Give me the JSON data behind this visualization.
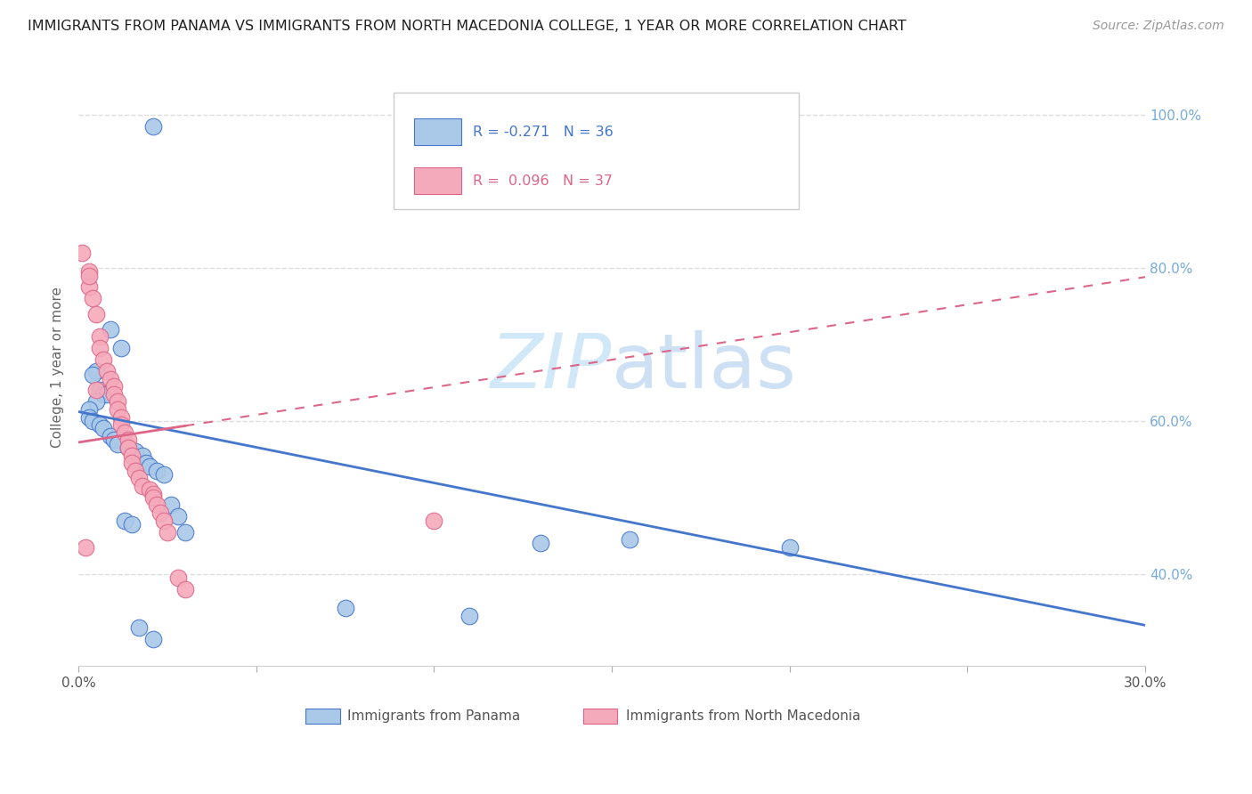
{
  "title": "IMMIGRANTS FROM PANAMA VS IMMIGRANTS FROM NORTH MACEDONIA COLLEGE, 1 YEAR OR MORE CORRELATION CHART",
  "source": "Source: ZipAtlas.com",
  "ylabel": "College, 1 year or more",
  "legend_blue_label": "Immigrants from Panama",
  "legend_pink_label": "Immigrants from North Macedonia",
  "legend_blue_r": "R = -0.271",
  "legend_blue_n": "N = 36",
  "legend_pink_r": "R = 0.096",
  "legend_pink_n": "N = 37",
  "xlim": [
    0.0,
    0.3
  ],
  "ylim": [
    0.28,
    1.06
  ],
  "yticks": [
    0.4,
    0.6,
    0.8,
    1.0
  ],
  "ytick_labels": [
    "40.0%",
    "60.0%",
    "80.0%",
    "100.0%"
  ],
  "xticks": [
    0.0,
    0.05,
    0.1,
    0.15,
    0.2,
    0.25,
    0.3
  ],
  "xtick_labels": [
    "0.0%",
    "",
    "",
    "",
    "",
    "",
    "30.0%"
  ],
  "blue_x": [
    0.021,
    0.009,
    0.012,
    0.005,
    0.004,
    0.006,
    0.007,
    0.008,
    0.005,
    0.003,
    0.003,
    0.004,
    0.006,
    0.007,
    0.009,
    0.01,
    0.011,
    0.014,
    0.016,
    0.018,
    0.019,
    0.02,
    0.022,
    0.024,
    0.026,
    0.028,
    0.013,
    0.015,
    0.03,
    0.13,
    0.2,
    0.155,
    0.075,
    0.11,
    0.017,
    0.021
  ],
  "blue_y": [
    0.985,
    0.72,
    0.695,
    0.665,
    0.66,
    0.64,
    0.635,
    0.635,
    0.625,
    0.615,
    0.605,
    0.6,
    0.595,
    0.59,
    0.58,
    0.575,
    0.57,
    0.565,
    0.56,
    0.555,
    0.545,
    0.54,
    0.535,
    0.53,
    0.49,
    0.475,
    0.47,
    0.465,
    0.455,
    0.44,
    0.435,
    0.445,
    0.355,
    0.345,
    0.33,
    0.315
  ],
  "pink_x": [
    0.001,
    0.003,
    0.003,
    0.004,
    0.005,
    0.006,
    0.006,
    0.007,
    0.008,
    0.009,
    0.01,
    0.01,
    0.011,
    0.011,
    0.012,
    0.012,
    0.013,
    0.014,
    0.014,
    0.015,
    0.015,
    0.016,
    0.017,
    0.018,
    0.02,
    0.021,
    0.021,
    0.022,
    0.023,
    0.024,
    0.025,
    0.028,
    0.03,
    0.003,
    0.005,
    0.1,
    0.002
  ],
  "pink_y": [
    0.82,
    0.795,
    0.775,
    0.76,
    0.74,
    0.71,
    0.695,
    0.68,
    0.665,
    0.655,
    0.645,
    0.635,
    0.625,
    0.615,
    0.605,
    0.595,
    0.585,
    0.575,
    0.565,
    0.555,
    0.545,
    0.535,
    0.525,
    0.515,
    0.51,
    0.505,
    0.5,
    0.49,
    0.48,
    0.47,
    0.455,
    0.395,
    0.38,
    0.79,
    0.64,
    0.47,
    0.435
  ],
  "blue_color": "#aac8e8",
  "pink_color": "#f5aabb",
  "blue_line_color": "#4477cc",
  "pink_line_color": "#dd6688",
  "watermark_color": "#d0e8f8",
  "background_color": "#ffffff",
  "grid_color": "#dddddd",
  "right_axis_color": "#77aadd",
  "blue_trend_intercept": 0.612,
  "blue_trend_slope": -0.93,
  "pink_trend_intercept": 0.572,
  "pink_trend_slope": 0.72
}
